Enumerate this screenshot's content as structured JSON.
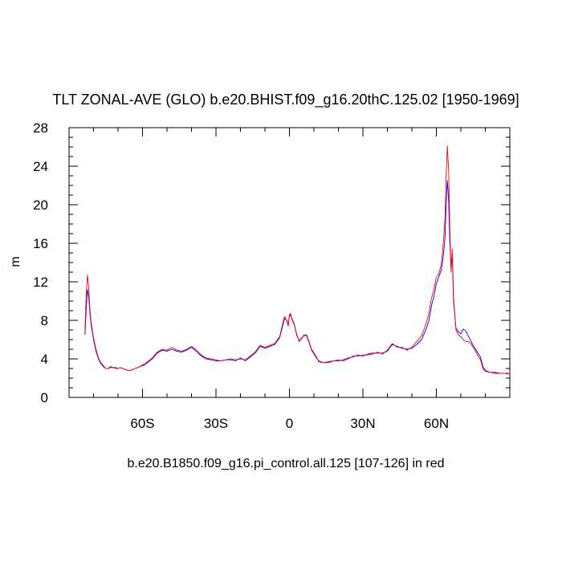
{
  "chart_data": {
    "type": "line",
    "title": "TLT ZONAL-AVE (GLO) b.e20.BHIST.f09_g16.20thC.125.02 [1950-1969]",
    "subtitle": "b.e20.B1850.f09_g16.pi_control.all.125 [107-126] in red",
    "xlabel": "",
    "ylabel": "m",
    "xlim": [
      -90,
      90
    ],
    "ylim": [
      0,
      28
    ],
    "x_tick_values": [
      -60,
      -30,
      0,
      30,
      60
    ],
    "x_tick_labels": [
      "60S",
      "30S",
      "0",
      "30N",
      "60N"
    ],
    "y_ticks": [
      0,
      4,
      8,
      12,
      16,
      20,
      24,
      28
    ],
    "grid": false,
    "series": [
      {
        "color": "#0000ff",
        "x": [
          -83.5,
          -83,
          -82.5,
          -82,
          -81.5,
          -81,
          -80.5,
          -80,
          -79,
          -78,
          -77,
          -76,
          -75,
          -74,
          -73,
          -72,
          -71,
          -70,
          -69,
          -68,
          -67,
          -66,
          -65,
          -64,
          -63,
          -62,
          -61,
          -60,
          -59,
          -58,
          -57,
          -56,
          -55,
          -54,
          -52,
          -50,
          -48,
          -46,
          -44,
          -42,
          -40,
          -38,
          -36,
          -34,
          -32,
          -30,
          -28,
          -26,
          -24,
          -22,
          -20,
          -18,
          -16,
          -14,
          -12,
          -10,
          -8,
          -6,
          -4,
          -3,
          -2,
          -1,
          -0.5,
          0,
          0.5,
          1,
          2,
          3,
          4,
          5,
          6,
          7,
          8,
          9,
          10,
          11,
          12,
          14,
          16,
          18,
          20,
          22,
          24,
          26,
          28,
          30,
          32,
          34,
          36,
          38,
          40,
          42,
          44,
          46,
          48,
          50,
          52,
          54,
          56,
          57,
          58,
          59,
          60,
          61,
          62,
          62.5,
          63,
          63.5,
          64,
          64.5,
          65,
          65.5,
          66,
          66.5,
          67,
          68,
          69,
          70,
          71,
          72,
          73,
          74,
          75,
          76,
          77,
          78,
          79,
          80,
          82,
          84,
          86,
          88,
          89.5
        ],
        "values": [
          6.5,
          9.0,
          11.2,
          10.5,
          8.8,
          7.5,
          6.8,
          6.0,
          4.8,
          4.0,
          3.5,
          3.2,
          3.0,
          3.0,
          3.2,
          3.1,
          3.1,
          3.0,
          3.1,
          3.0,
          2.9,
          2.8,
          2.8,
          2.9,
          3.0,
          3.1,
          3.2,
          3.3,
          3.4,
          3.6,
          3.8,
          4.0,
          4.3,
          4.6,
          4.9,
          4.8,
          5.0,
          4.8,
          4.7,
          4.9,
          5.2,
          4.8,
          4.3,
          4.0,
          3.9,
          3.8,
          3.8,
          3.9,
          3.9,
          3.8,
          4.1,
          3.8,
          4.2,
          4.6,
          5.3,
          5.1,
          5.3,
          5.5,
          6.2,
          7.2,
          8.2,
          8.0,
          7.5,
          8.4,
          8.6,
          8.2,
          7.6,
          6.5,
          5.8,
          6.2,
          6.4,
          6.5,
          5.8,
          5.0,
          4.6,
          4.2,
          3.7,
          3.6,
          3.7,
          3.8,
          3.8,
          3.9,
          4.1,
          4.2,
          4.4,
          4.3,
          4.5,
          4.6,
          4.6,
          4.6,
          4.8,
          5.5,
          5.3,
          5.1,
          5.0,
          5.1,
          5.5,
          6.0,
          7.2,
          8.0,
          9.5,
          10.5,
          11.8,
          12.5,
          13.2,
          14.0,
          15.0,
          16.5,
          20.0,
          22.5,
          20.5,
          16.0,
          13.5,
          14.8,
          10.0,
          7.2,
          6.8,
          6.6,
          7.1,
          6.9,
          6.4,
          5.9,
          5.4,
          5.0,
          4.6,
          4.2,
          3.2,
          2.8,
          2.6,
          2.6,
          2.5,
          2.5,
          2.5
        ]
      },
      {
        "color": "#ff0000",
        "x": [
          -83.5,
          -83,
          -82.5,
          -82,
          -81.5,
          -81,
          -80.5,
          -80,
          -79,
          -78,
          -77,
          -76,
          -75,
          -74,
          -73,
          -72,
          -71,
          -70,
          -69,
          -68,
          -67,
          -66,
          -65,
          -64,
          -63,
          -62,
          -61,
          -60,
          -59,
          -58,
          -57,
          -56,
          -55,
          -54,
          -52,
          -50,
          -48,
          -46,
          -44,
          -42,
          -40,
          -38,
          -36,
          -34,
          -32,
          -30,
          -28,
          -26,
          -24,
          -22,
          -20,
          -18,
          -16,
          -14,
          -12,
          -10,
          -8,
          -6,
          -4,
          -3,
          -2,
          -1,
          -0.5,
          0,
          0.5,
          1,
          2,
          3,
          4,
          5,
          6,
          7,
          8,
          9,
          10,
          11,
          12,
          14,
          16,
          18,
          20,
          22,
          24,
          26,
          28,
          30,
          32,
          34,
          36,
          38,
          40,
          42,
          44,
          46,
          48,
          50,
          52,
          54,
          56,
          57,
          58,
          59,
          60,
          61,
          62,
          62.5,
          63,
          63.5,
          64,
          64.5,
          65,
          65.5,
          66,
          66.5,
          67,
          68,
          69,
          70,
          71,
          72,
          73,
          74,
          75,
          76,
          77,
          78,
          79,
          80,
          82,
          84,
          86,
          88,
          89.5
        ],
        "values": [
          7.0,
          10.5,
          12.7,
          11.5,
          9.2,
          7.8,
          7.0,
          6.2,
          5.0,
          4.1,
          3.6,
          3.3,
          3.0,
          3.0,
          3.1,
          3.1,
          3.0,
          3.0,
          3.1,
          3.0,
          2.9,
          2.8,
          2.8,
          2.9,
          3.0,
          3.1,
          3.2,
          3.4,
          3.5,
          3.7,
          3.9,
          4.1,
          4.4,
          4.7,
          5.0,
          4.9,
          5.2,
          4.9,
          4.8,
          5.0,
          5.3,
          4.9,
          4.4,
          4.1,
          4.0,
          3.9,
          3.8,
          3.9,
          4.0,
          3.9,
          4.0,
          3.9,
          4.3,
          4.7,
          5.4,
          5.2,
          5.4,
          5.6,
          6.3,
          7.4,
          8.4,
          7.9,
          7.4,
          8.6,
          8.7,
          8.1,
          7.5,
          6.4,
          5.9,
          6.1,
          6.5,
          6.4,
          5.7,
          4.9,
          4.5,
          4.1,
          3.8,
          3.6,
          3.6,
          3.8,
          3.9,
          3.8,
          4.0,
          4.3,
          4.3,
          4.4,
          4.4,
          4.5,
          4.7,
          4.5,
          4.9,
          5.6,
          5.2,
          5.2,
          4.9,
          5.2,
          5.8,
          6.4,
          7.8,
          8.8,
          10.3,
          11.2,
          12.5,
          12.8,
          13.8,
          15.0,
          16.5,
          18.5,
          23.0,
          26.1,
          23.5,
          17.5,
          13.0,
          15.4,
          10.5,
          7.0,
          6.5,
          6.3,
          6.0,
          5.8,
          5.8,
          5.6,
          5.2,
          4.8,
          4.3,
          3.9,
          3.0,
          2.7,
          2.6,
          2.5,
          2.5,
          2.5,
          2.4
        ]
      }
    ]
  }
}
